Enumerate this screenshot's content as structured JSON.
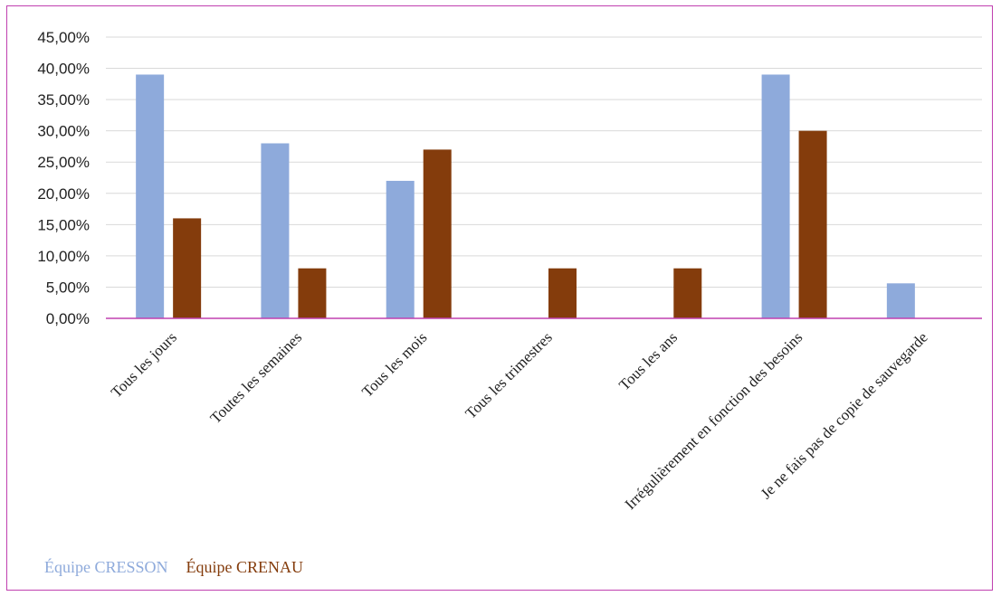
{
  "chart_data": {
    "type": "bar",
    "categories": [
      "Tous les jours",
      "Toutes les semaines",
      "Tous les mois",
      "Tous les trimestres",
      "Tous les ans",
      "Irrégulièrement en fonction des besoins",
      "Je ne fais pas de copie de sauvegarde"
    ],
    "series": [
      {
        "name": "Équipe CRESSON",
        "values": [
          39,
          28,
          22,
          0,
          0,
          39,
          5.6
        ]
      },
      {
        "name": "Équipe CRENAU",
        "values": [
          16,
          8,
          27,
          8,
          8,
          30,
          0
        ]
      }
    ],
    "ylim": [
      0,
      45
    ],
    "yticks": [
      "0,00%",
      "5,00%",
      "10,00%",
      "15,00%",
      "20,00%",
      "25,00%",
      "30,00%",
      "35,00%",
      "40,00%",
      "45,00%"
    ],
    "grid": true,
    "legend": "bottom-left",
    "colors": [
      "#8eaadb",
      "#843c0c"
    ],
    "axis_color": "#c040b0"
  }
}
